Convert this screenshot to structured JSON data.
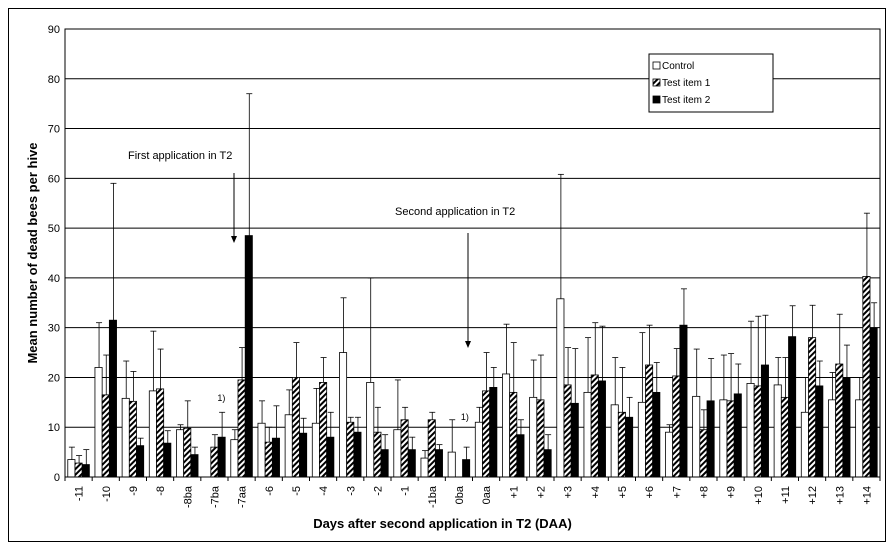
{
  "chart_data": {
    "type": "bar",
    "xlabel": "Days after second application in T2 (DAA)",
    "ylabel": "Mean number of dead bees per  hive",
    "ylim": [
      0,
      90
    ],
    "yticks": [
      0,
      10,
      20,
      30,
      40,
      50,
      60,
      70,
      80,
      90
    ],
    "grid": true,
    "legend_position": "top-right",
    "categories": [
      "-11",
      "-10",
      "-9",
      "-8",
      "-8ba",
      "-7ba",
      "-7aa",
      "-6",
      "-5",
      "-4",
      "-3",
      "-2",
      "-1",
      "-1ba",
      "0ba",
      "0aa",
      "+1",
      "+2",
      "+3",
      "+4",
      "+5",
      "+6",
      "+7",
      "+8",
      "+9",
      "+10",
      "+11",
      "+12",
      "+13",
      "+14"
    ],
    "series": [
      {
        "name": "Control",
        "fill": "#ffffff",
        "values": [
          3.5,
          22,
          15.8,
          17.3,
          9.5,
          null,
          7.5,
          10.8,
          12.5,
          10.8,
          25,
          19,
          9.5,
          3.8,
          5,
          11,
          20.7,
          16,
          35.8,
          17,
          14.5,
          15,
          9,
          16.2,
          15.5,
          18.8,
          18.5,
          13,
          15.5,
          15.5
        ],
        "errors": [
          2.5,
          9,
          7.5,
          12,
          1,
          null,
          2,
          4.5,
          5,
          7,
          11,
          21,
          10,
          1.5,
          6.5,
          3,
          10,
          7.5,
          25,
          11,
          9.5,
          14,
          1.5,
          9.5,
          9,
          12.5,
          5.5,
          7,
          5.5,
          4.5
        ]
      },
      {
        "name": "Test item 1",
        "fill": "hatch",
        "values": [
          2.8,
          16.5,
          15.2,
          17.7,
          9.8,
          6,
          19.5,
          7,
          20,
          19,
          11,
          9,
          11.5,
          11.5,
          null,
          17.3,
          17,
          15.5,
          18.5,
          20.5,
          13,
          22.5,
          20.3,
          9.5,
          15.3,
          18.3,
          16,
          28,
          22.7,
          40.3
        ],
        "errors": [
          1.5,
          8,
          6,
          8,
          5.5,
          2.5,
          6.5,
          3,
          7,
          5,
          1,
          5,
          2.5,
          1.5,
          null,
          7.7,
          10,
          9,
          7.5,
          10.5,
          9,
          8,
          5.5,
          4,
          9.5,
          14,
          8,
          6.5,
          10,
          12.7
        ]
      },
      {
        "name": "Test item 2",
        "fill": "#000000",
        "values": [
          2.5,
          31.5,
          6.3,
          6.8,
          4.5,
          8,
          48.5,
          7.8,
          8.8,
          8,
          9,
          5.5,
          5.5,
          5.5,
          3.5,
          18,
          8.5,
          5.5,
          14.8,
          19.3,
          12,
          17,
          30.5,
          15.3,
          16.7,
          22.5,
          28.2,
          18.3,
          20,
          30
        ],
        "errors": [
          3,
          27.5,
          1.5,
          2.5,
          1.5,
          5,
          28.5,
          6.5,
          3,
          5,
          3,
          3,
          2.5,
          1,
          2.5,
          4,
          3,
          3,
          11,
          11,
          4,
          6,
          7.3,
          8.5,
          6,
          10,
          6.2,
          5,
          6.5,
          5
        ]
      }
    ],
    "annotations": [
      {
        "text": "First application in T2",
        "points_to": "-7aa"
      },
      {
        "text": "Second application in T2",
        "points_to": "0aa"
      },
      {
        "text": "1)",
        "near": "-7ba"
      },
      {
        "text": "1)",
        "near": "0ba"
      }
    ]
  },
  "colors": {
    "grid": "#000000",
    "control_fill": "#ffffff",
    "test1_hatch": "#000000",
    "test2_fill": "#000000"
  }
}
